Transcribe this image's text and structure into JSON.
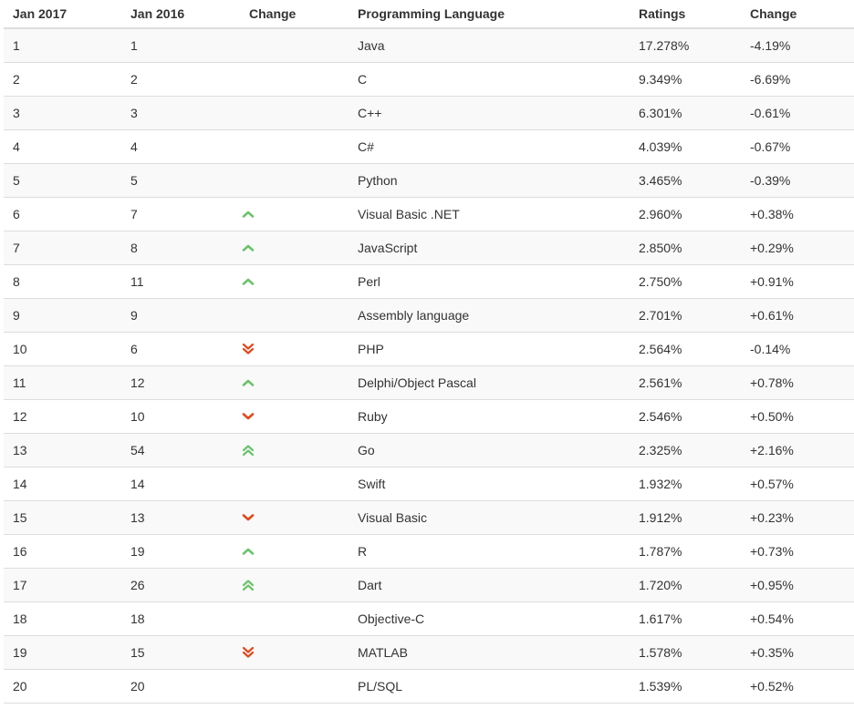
{
  "colors": {
    "up": "#6cc36c",
    "down": "#e0491b",
    "header_border": "#dddddd",
    "stripe": "#f9f9f9"
  },
  "headers": {
    "rank_2017": "Jan 2017",
    "rank_2016": "Jan 2016",
    "change_icon": "Change",
    "language": "Programming Language",
    "ratings": "Ratings",
    "change_pct": "Change"
  },
  "rows": [
    {
      "rank_2017": "1",
      "rank_2016": "1",
      "trend": "none",
      "language": "Java",
      "ratings": "17.278%",
      "change": "-4.19%"
    },
    {
      "rank_2017": "2",
      "rank_2016": "2",
      "trend": "none",
      "language": "C",
      "ratings": "9.349%",
      "change": "-6.69%"
    },
    {
      "rank_2017": "3",
      "rank_2016": "3",
      "trend": "none",
      "language": "C++",
      "ratings": "6.301%",
      "change": "-0.61%"
    },
    {
      "rank_2017": "4",
      "rank_2016": "4",
      "trend": "none",
      "language": "C#",
      "ratings": "4.039%",
      "change": "-0.67%"
    },
    {
      "rank_2017": "5",
      "rank_2016": "5",
      "trend": "none",
      "language": "Python",
      "ratings": "3.465%",
      "change": "-0.39%"
    },
    {
      "rank_2017": "6",
      "rank_2016": "7",
      "trend": "up",
      "language": "Visual Basic .NET",
      "ratings": "2.960%",
      "change": "+0.38%"
    },
    {
      "rank_2017": "7",
      "rank_2016": "8",
      "trend": "up",
      "language": "JavaScript",
      "ratings": "2.850%",
      "change": "+0.29%"
    },
    {
      "rank_2017": "8",
      "rank_2016": "11",
      "trend": "up",
      "language": "Perl",
      "ratings": "2.750%",
      "change": "+0.91%"
    },
    {
      "rank_2017": "9",
      "rank_2016": "9",
      "trend": "none",
      "language": "Assembly language",
      "ratings": "2.701%",
      "change": "+0.61%"
    },
    {
      "rank_2017": "10",
      "rank_2016": "6",
      "trend": "double-down",
      "language": "PHP",
      "ratings": "2.564%",
      "change": "-0.14%"
    },
    {
      "rank_2017": "11",
      "rank_2016": "12",
      "trend": "up",
      "language": "Delphi/Object Pascal",
      "ratings": "2.561%",
      "change": "+0.78%"
    },
    {
      "rank_2017": "12",
      "rank_2016": "10",
      "trend": "down",
      "language": "Ruby",
      "ratings": "2.546%",
      "change": "+0.50%"
    },
    {
      "rank_2017": "13",
      "rank_2016": "54",
      "trend": "double-up",
      "language": "Go",
      "ratings": "2.325%",
      "change": "+2.16%"
    },
    {
      "rank_2017": "14",
      "rank_2016": "14",
      "trend": "none",
      "language": "Swift",
      "ratings": "1.932%",
      "change": "+0.57%"
    },
    {
      "rank_2017": "15",
      "rank_2016": "13",
      "trend": "down",
      "language": "Visual Basic",
      "ratings": "1.912%",
      "change": "+0.23%"
    },
    {
      "rank_2017": "16",
      "rank_2016": "19",
      "trend": "up",
      "language": "R",
      "ratings": "1.787%",
      "change": "+0.73%"
    },
    {
      "rank_2017": "17",
      "rank_2016": "26",
      "trend": "double-up",
      "language": "Dart",
      "ratings": "1.720%",
      "change": "+0.95%"
    },
    {
      "rank_2017": "18",
      "rank_2016": "18",
      "trend": "none",
      "language": "Objective-C",
      "ratings": "1.617%",
      "change": "+0.54%"
    },
    {
      "rank_2017": "19",
      "rank_2016": "15",
      "trend": "double-down",
      "language": "MATLAB",
      "ratings": "1.578%",
      "change": "+0.35%"
    },
    {
      "rank_2017": "20",
      "rank_2016": "20",
      "trend": "none",
      "language": "PL/SQL",
      "ratings": "1.539%",
      "change": "+0.52%"
    }
  ]
}
